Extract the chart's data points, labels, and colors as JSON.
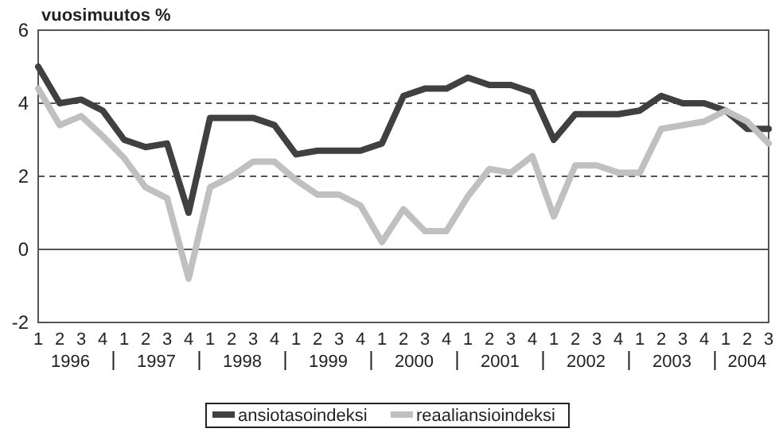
{
  "chart_data": {
    "type": "line",
    "ylabel": "vuosimuutos %",
    "categories": [
      "1",
      "2",
      "3",
      "4",
      "1",
      "2",
      "3",
      "4",
      "1",
      "2",
      "3",
      "4",
      "1",
      "2",
      "3",
      "4",
      "1",
      "2",
      "3",
      "4",
      "1",
      "2",
      "3",
      "4",
      "1",
      "2",
      "3",
      "4",
      "1",
      "2",
      "3",
      "4",
      "1",
      "2",
      "3"
    ],
    "annotations": [
      "1996",
      "1997",
      "1998",
      "1999",
      "2000",
      "2001",
      "2002",
      "2003",
      "2004"
    ],
    "series": [
      {
        "name": "ansiotasoindeksi",
        "color": "#404040",
        "values": [
          5.0,
          4.0,
          4.1,
          3.8,
          3.0,
          2.8,
          2.9,
          1.0,
          3.6,
          3.6,
          3.6,
          3.4,
          2.6,
          2.7,
          2.7,
          2.7,
          2.9,
          4.2,
          4.4,
          4.4,
          4.7,
          4.5,
          4.5,
          4.3,
          3.0,
          3.7,
          3.7,
          3.7,
          3.8,
          4.2,
          4.0,
          4.0,
          3.8,
          3.3,
          3.3
        ]
      },
      {
        "name": "reaaliansioindeksi",
        "color": "#c0c0c0",
        "values": [
          4.4,
          3.4,
          3.65,
          3.1,
          2.5,
          1.7,
          1.4,
          -0.8,
          1.7,
          2.0,
          2.4,
          2.4,
          1.9,
          1.5,
          1.5,
          1.2,
          0.2,
          1.1,
          0.5,
          0.5,
          1.45,
          2.2,
          2.1,
          2.55,
          0.9,
          2.3,
          2.3,
          2.1,
          2.1,
          3.3,
          3.4,
          3.5,
          3.8,
          3.5,
          2.9
        ]
      }
    ],
    "ylim": [
      -2,
      6
    ],
    "yticks": [
      -2,
      0,
      2,
      4,
      6
    ],
    "grid": "y",
    "ref_lines": [
      {
        "axis": "y",
        "value": 0
      }
    ],
    "legend": "bottom",
    "line_style": "solid",
    "marker": "none"
  }
}
